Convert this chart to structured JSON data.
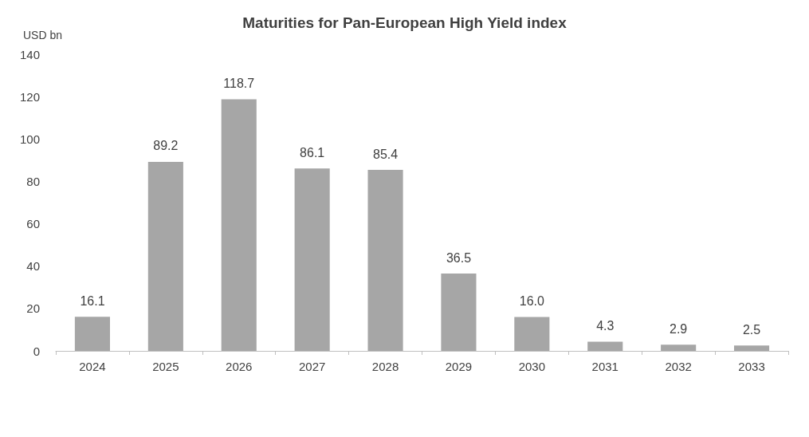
{
  "chart_data": {
    "type": "bar",
    "title": "Maturities for Pan-European High Yield index",
    "ylabel": "USD bn",
    "categories": [
      "2024",
      "2025",
      "2026",
      "2027",
      "2028",
      "2029",
      "2030",
      "2031",
      "2032",
      "2033"
    ],
    "values": [
      16.1,
      89.2,
      118.7,
      86.1,
      85.4,
      36.5,
      16.0,
      4.3,
      2.9,
      2.5
    ],
    "value_labels": [
      "16.1",
      "89.2",
      "118.7",
      "86.1",
      "85.4",
      "36.5",
      "16.0",
      "4.3",
      "2.9",
      "2.5"
    ],
    "color": "#a6a6a6",
    "ylim": [
      0,
      140
    ],
    "yticks": [
      0,
      20,
      40,
      60,
      80,
      100,
      120,
      140
    ]
  }
}
